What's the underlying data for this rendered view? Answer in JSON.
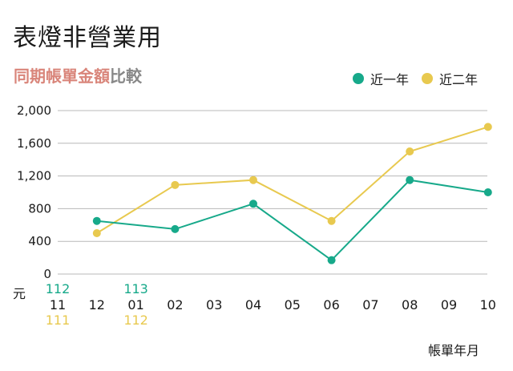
{
  "header": {
    "title": "表燈非營業用",
    "subtitle_accent": "同期帳單金額",
    "subtitle_rest": "比較"
  },
  "colors": {
    "recent": "#17a98a",
    "prior": "#e8c94f",
    "grid": "#b8b8b8",
    "text": "#1a1a1a"
  },
  "chart_data": {
    "type": "line",
    "ylabel": "元",
    "xlabel": "帳單年月",
    "ylim": [
      0,
      2000
    ],
    "yticks": [
      0,
      400,
      800,
      1200,
      1600,
      2000
    ],
    "ytick_labels": [
      "0",
      "400",
      "800",
      "1,200",
      "1,600",
      "2,000"
    ],
    "categories": [
      "11",
      "12",
      "01",
      "02",
      "03",
      "04",
      "05",
      "06",
      "07",
      "08",
      "09",
      "10"
    ],
    "year_labels": {
      "recent": [
        {
          "category": "11",
          "text": "112"
        },
        {
          "category": "01",
          "text": "113"
        }
      ],
      "prior": [
        {
          "category": "11",
          "text": "111"
        },
        {
          "category": "01",
          "text": "112"
        }
      ]
    },
    "series": [
      {
        "name": "近一年",
        "key": "recent",
        "color": "#17a98a",
        "points": [
          {
            "x": "12",
            "y": 650
          },
          {
            "x": "02",
            "y": 550
          },
          {
            "x": "04",
            "y": 860
          },
          {
            "x": "06",
            "y": 170
          },
          {
            "x": "08",
            "y": 1150
          },
          {
            "x": "10",
            "y": 1000
          }
        ]
      },
      {
        "name": "近二年",
        "key": "prior",
        "color": "#e8c94f",
        "points": [
          {
            "x": "12",
            "y": 500
          },
          {
            "x": "02",
            "y": 1090
          },
          {
            "x": "04",
            "y": 1150
          },
          {
            "x": "06",
            "y": 650
          },
          {
            "x": "08",
            "y": 1500
          },
          {
            "x": "10",
            "y": 1800
          }
        ]
      }
    ]
  }
}
